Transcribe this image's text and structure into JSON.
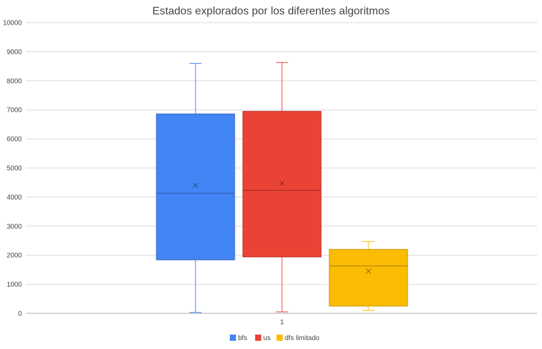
{
  "chart_data": {
    "type": "box",
    "title": "Estados explorados por los diferentes algoritmos",
    "xlabel": "",
    "ylabel": "",
    "categories": [
      "1"
    ],
    "ylim": [
      0,
      10000
    ],
    "yticks": [
      "0",
      "1000",
      "2000",
      "3000",
      "4000",
      "5000",
      "6000",
      "7000",
      "8000",
      "9000",
      "10000"
    ],
    "grid": true,
    "legend_position": "bottom",
    "series": [
      {
        "name": "bfs",
        "color": "#4285f4",
        "min": 30,
        "q1": 1840,
        "median": 4130,
        "q3": 6860,
        "max": 8600,
        "mean": 4400
      },
      {
        "name": "us",
        "color": "#ea4335",
        "min": 50,
        "q1": 1940,
        "median": 4230,
        "q3": 6950,
        "max": 8630,
        "mean": 4480
      },
      {
        "name": "dfs limitado",
        "color": "#fbbc04",
        "min": 100,
        "q1": 250,
        "median": 1630,
        "q3": 2200,
        "max": 2470,
        "mean": 1450
      }
    ]
  }
}
